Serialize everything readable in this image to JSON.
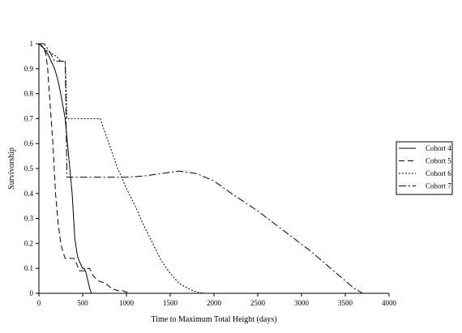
{
  "chart_data": {
    "type": "line",
    "xlabel": "Time to Maximum Total Height (days)",
    "ylabel": "Survivorship",
    "xlim": [
      0,
      4000
    ],
    "ylim": [
      0,
      1
    ],
    "x_ticks": [
      "0",
      "500",
      "1000",
      "1500",
      "2000",
      "2500",
      "3000",
      "3500",
      "4000"
    ],
    "y_ticks": [
      "0",
      "0.1",
      "0.2",
      "0.3",
      "0.4",
      "0.5",
      "0.6",
      "0.7",
      "0.8",
      "0.9",
      "1"
    ],
    "grid": false,
    "legend_position": "right",
    "series": [
      {
        "name": "Cohort 4",
        "dash": "",
        "x": [
          0,
          60,
          100,
          140,
          180,
          220,
          260,
          300,
          340,
          380,
          410,
          440,
          460,
          500,
          520,
          540,
          560,
          580,
          600
        ],
        "y": [
          1,
          0.98,
          0.96,
          0.93,
          0.9,
          0.85,
          0.78,
          0.7,
          0.55,
          0.4,
          0.22,
          0.15,
          0.13,
          0.1,
          0.1,
          0.08,
          0.05,
          0.02,
          0
        ]
      },
      {
        "name": "Cohort 5",
        "dash": "7,4",
        "x": [
          0,
          40,
          80,
          100,
          130,
          160,
          190,
          220,
          250,
          280,
          300,
          320,
          340,
          400,
          430,
          460,
          480,
          520,
          560,
          580,
          620,
          680,
          760,
          830,
          900,
          960,
          1000,
          1050
        ],
        "y": [
          1,
          0.99,
          0.96,
          0.9,
          0.75,
          0.6,
          0.4,
          0.28,
          0.2,
          0.16,
          0.14,
          0.14,
          0.14,
          0.14,
          0.12,
          0.09,
          0.09,
          0.09,
          0.1,
          0.1,
          0.07,
          0.05,
          0.04,
          0.02,
          0.01,
          0.01,
          0.005,
          0
        ]
      },
      {
        "name": "Cohort 6",
        "dash": "2,2",
        "x": [
          0,
          100,
          200,
          250,
          300,
          310,
          320,
          700,
          800,
          900,
          1000,
          1100,
          1200,
          1300,
          1400,
          1500,
          1600,
          1700,
          1800,
          1900
        ],
        "y": [
          1,
          0.97,
          0.95,
          0.93,
          0.93,
          0.85,
          0.7,
          0.7,
          0.6,
          0.5,
          0.42,
          0.35,
          0.27,
          0.2,
          0.13,
          0.08,
          0.04,
          0.02,
          0.005,
          0
        ]
      },
      {
        "name": "Cohort 7",
        "dash": "9,3,2,3",
        "x": [
          0,
          60,
          120,
          180,
          240,
          300,
          310,
          320,
          600,
          1000,
          1200,
          1400,
          1600,
          1800,
          2000,
          2200,
          2500,
          2800,
          3100,
          3400,
          3600,
          3700
        ],
        "y": [
          1,
          1,
          0.97,
          0.93,
          0.93,
          0.93,
          0.7,
          0.465,
          0.465,
          0.465,
          0.47,
          0.48,
          0.49,
          0.48,
          0.45,
          0.4,
          0.33,
          0.25,
          0.17,
          0.08,
          0.02,
          0
        ]
      }
    ]
  }
}
